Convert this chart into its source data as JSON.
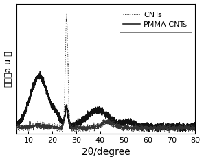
{
  "xlabel": "2θ/degree",
  "ylabel": "强度（a.u.）",
  "xlim": [
    5,
    80
  ],
  "legend": [
    "CNTs",
    "PMMA-CNTs"
  ],
  "background_color": "#ffffff",
  "line_color_cnts": "#333333",
  "line_color_pmma": "#111111",
  "xlabel_fontsize": 10,
  "ylabel_fontsize": 9,
  "tick_fontsize": 8,
  "legend_fontsize": 8,
  "xticks": [
    10,
    20,
    30,
    40,
    50,
    60,
    70,
    80
  ]
}
